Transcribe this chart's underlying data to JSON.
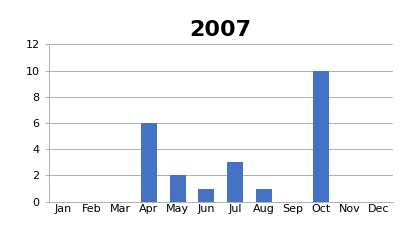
{
  "title": "2007",
  "categories": [
    "Jan",
    "Feb",
    "Mar",
    "Apr",
    "May",
    "Jun",
    "Jul",
    "Aug",
    "Sep",
    "Oct",
    "Nov",
    "Dec"
  ],
  "values": [
    0,
    0,
    0,
    6,
    2,
    1,
    3,
    1,
    0,
    10,
    0,
    0
  ],
  "bar_color": "#4472C4",
  "ylim": [
    0,
    12
  ],
  "yticks": [
    0,
    2,
    4,
    6,
    8,
    10,
    12
  ],
  "title_fontsize": 16,
  "tick_fontsize": 8,
  "background_color": "#ffffff",
  "grid_color": "#b0b0b0"
}
